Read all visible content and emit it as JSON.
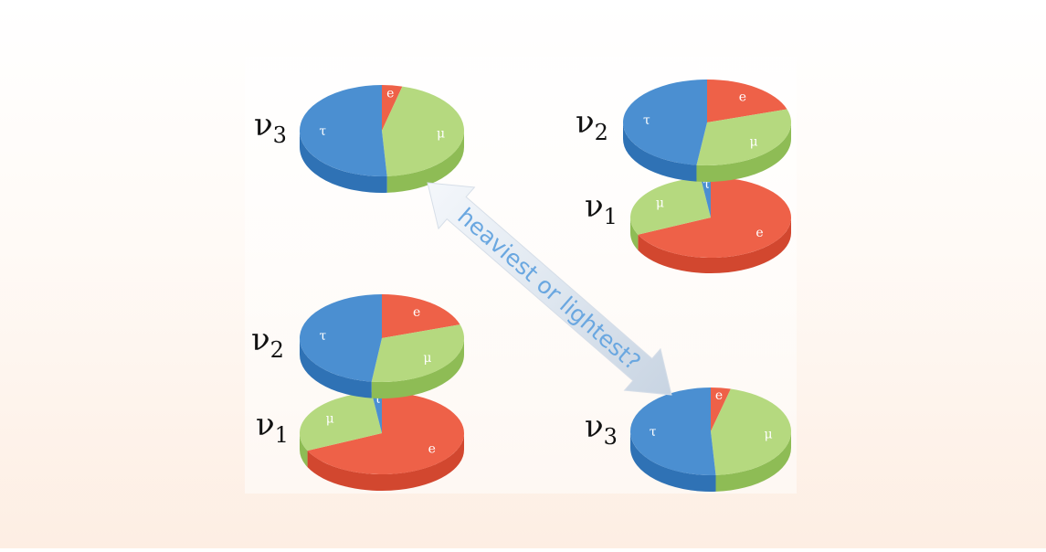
{
  "colors": {
    "e": "#ee6148",
    "e_side": "#d2472f",
    "mu": "#b5d97f",
    "mu_side": "#8ebc55",
    "tau": "#4b8fd1",
    "tau_side": "#2f72b5",
    "arrow_fill": "#e7eef5",
    "arrow_text": "#6aa7e0"
  },
  "flavor_labels": {
    "e": "e",
    "mu": "μ",
    "tau": "τ"
  },
  "arrow": {
    "label": "heaviest or lightest?"
  },
  "hierarchies": [
    {
      "name": "upper",
      "stack_top": {
        "label": "ν",
        "sub": "3",
        "fractions": {
          "e": 0.02,
          "mu": 0.5,
          "tau": 0.48
        }
      },
      "stack_bottom_pair": [
        {
          "label": "ν",
          "sub": "2",
          "fractions": {
            "e": 0.3,
            "mu": 0.35,
            "tau": 0.35
          }
        },
        {
          "label": "ν",
          "sub": "1",
          "fractions": {
            "e": 0.68,
            "mu": 0.3,
            "tau": 0.02
          }
        }
      ]
    }
  ],
  "pies": [
    {
      "label": "ν",
      "sub": "3",
      "fractions": {
        "e": 0.04,
        "mu": 0.45,
        "tau": 0.51
      }
    },
    {
      "label": "ν",
      "sub": "2",
      "fractions": {
        "e": 0.2,
        "mu": 0.32,
        "tau": 0.48
      }
    },
    {
      "label": "ν",
      "sub": "1",
      "fractions": {
        "e": 0.68,
        "mu": 0.3,
        "tau": 0.02
      }
    },
    {
      "label": "ν",
      "sub": "2",
      "fractions": {
        "e": 0.2,
        "mu": 0.32,
        "tau": 0.48
      }
    },
    {
      "label": "ν",
      "sub": "1",
      "fractions": {
        "e": 0.68,
        "mu": 0.3,
        "tau": 0.02
      }
    },
    {
      "label": "ν",
      "sub": "3",
      "fractions": {
        "e": 0.04,
        "mu": 0.45,
        "tau": 0.51
      }
    }
  ]
}
